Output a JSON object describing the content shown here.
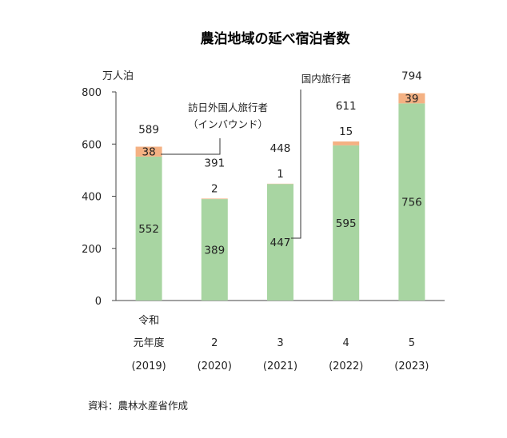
{
  "chart_data": {
    "type": "bar",
    "stacked": true,
    "title": "農泊地域の延べ宿泊者数",
    "ylabel": "万人泊",
    "ylim": [
      0,
      800
    ],
    "yticks": [
      0,
      200,
      400,
      600,
      800
    ],
    "grid": false,
    "categories": [
      [
        "令和",
        "元年度",
        "(2019)"
      ],
      [
        "2",
        "(2020)"
      ],
      [
        "3",
        "(2021)"
      ],
      [
        "4",
        "(2022)"
      ],
      [
        "5",
        "(2023)"
      ]
    ],
    "series": [
      {
        "name": "国内旅行者",
        "values": [
          552,
          389,
          447,
          595,
          756
        ],
        "color": "#a8d5a2"
      },
      {
        "name": "訪日外国人旅行者（インバウンド）",
        "values": [
          38,
          2,
          1,
          15,
          39
        ],
        "color": "#f4b183"
      }
    ],
    "totals": [
      589,
      391,
      448,
      611,
      794
    ],
    "annotations": {
      "inbound_label_line1": "訪日外国人旅行者",
      "inbound_label_line2": "（インバウンド）",
      "domestic_label": "国内旅行者"
    },
    "source": "資料：農林水産省作成"
  }
}
